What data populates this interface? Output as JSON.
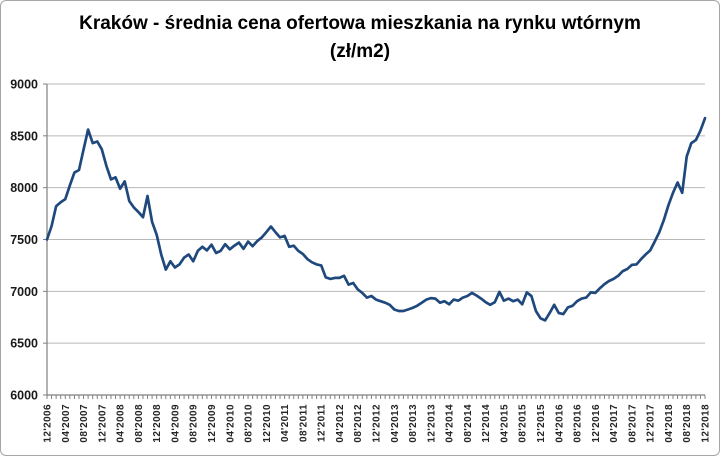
{
  "title": "Kraków - średnia cena ofertowa mieszkania na rynku wtórnym (zł/m2)",
  "colors": {
    "line": "#1F497D",
    "grid": "#b8b8b8",
    "axis": "#808080",
    "title_text": "#000000",
    "tick_text": "#262626"
  },
  "chart_data": {
    "type": "line",
    "title": "Kraków - średnia cena ofertowa mieszkania na rynku wtórnym (zł/m2)",
    "xlabel": "",
    "ylabel": "",
    "ylim": [
      6000,
      9000
    ],
    "y_ticks": [
      6000,
      6500,
      7000,
      7500,
      8000,
      8500,
      9000
    ],
    "grid": true,
    "legend_position": "none",
    "x_interval": "monthly",
    "x_start": "12'2006",
    "x_end": "12'2018",
    "x_label_step_months": 4,
    "x_tick_labels": [
      "12'2006",
      "04'2007",
      "08'2007",
      "12'2007",
      "04'2008",
      "08'2008",
      "12'2008",
      "04'2009",
      "08'2009",
      "12'2009",
      "04'2010",
      "08'2010",
      "12'2010",
      "04'2011",
      "08'2011",
      "12'2011",
      "04'2012",
      "08'2012",
      "12'2012",
      "04'2013",
      "08'2013",
      "12'2013",
      "04'2014",
      "08'2014",
      "12'2014",
      "04'2015",
      "08'2015",
      "12'2015",
      "04'2016",
      "08'2016",
      "12'2016",
      "04'2017",
      "08'2017",
      "12'2017",
      "04'2018",
      "08'2018",
      "12'2018"
    ],
    "line_color": "#1F497D",
    "values": [
      7500,
      7630,
      7820,
      7860,
      7890,
      8020,
      8145,
      8170,
      8370,
      8560,
      8430,
      8445,
      8370,
      8210,
      8080,
      8100,
      7990,
      8060,
      7870,
      7810,
      7765,
      7715,
      7920,
      7670,
      7545,
      7355,
      7210,
      7290,
      7230,
      7260,
      7325,
      7355,
      7290,
      7390,
      7430,
      7395,
      7450,
      7370,
      7390,
      7455,
      7405,
      7440,
      7470,
      7410,
      7480,
      7435,
      7485,
      7520,
      7570,
      7625,
      7570,
      7520,
      7535,
      7430,
      7440,
      7390,
      7360,
      7310,
      7280,
      7260,
      7250,
      7135,
      7120,
      7130,
      7130,
      7150,
      7065,
      7080,
      7020,
      6985,
      6940,
      6955,
      6920,
      6905,
      6890,
      6870,
      6825,
      6810,
      6810,
      6825,
      6840,
      6860,
      6890,
      6920,
      6935,
      6930,
      6890,
      6905,
      6875,
      6920,
      6910,
      6940,
      6955,
      6985,
      6960,
      6930,
      6895,
      6870,
      6895,
      6995,
      6910,
      6930,
      6905,
      6920,
      6875,
      6990,
      6955,
      6810,
      6740,
      6720,
      6790,
      6870,
      6790,
      6780,
      6845,
      6860,
      6905,
      6930,
      6940,
      6990,
      6985,
      7030,
      7070,
      7100,
      7120,
      7150,
      7195,
      7215,
      7255,
      7260,
      7310,
      7355,
      7395,
      7480,
      7570,
      7690,
      7830,
      7950,
      8050,
      7950,
      8300,
      8430,
      8460,
      8550,
      8670
    ]
  }
}
